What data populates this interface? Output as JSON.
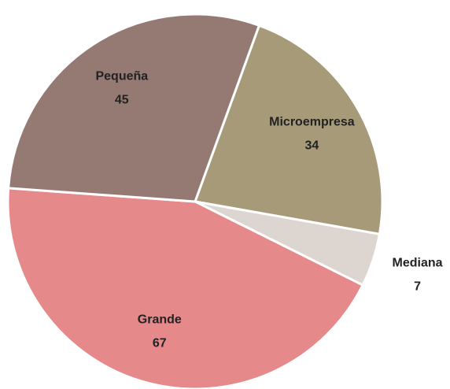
{
  "chart_data": {
    "type": "pie",
    "categories": [
      "Microempresa",
      "Mediana",
      "Grande",
      "Pequeña"
    ],
    "values": [
      34,
      7,
      67,
      45
    ],
    "colors": [
      "#a69a78",
      "#ddd5d0",
      "#e5898a",
      "#957a74"
    ]
  }
}
